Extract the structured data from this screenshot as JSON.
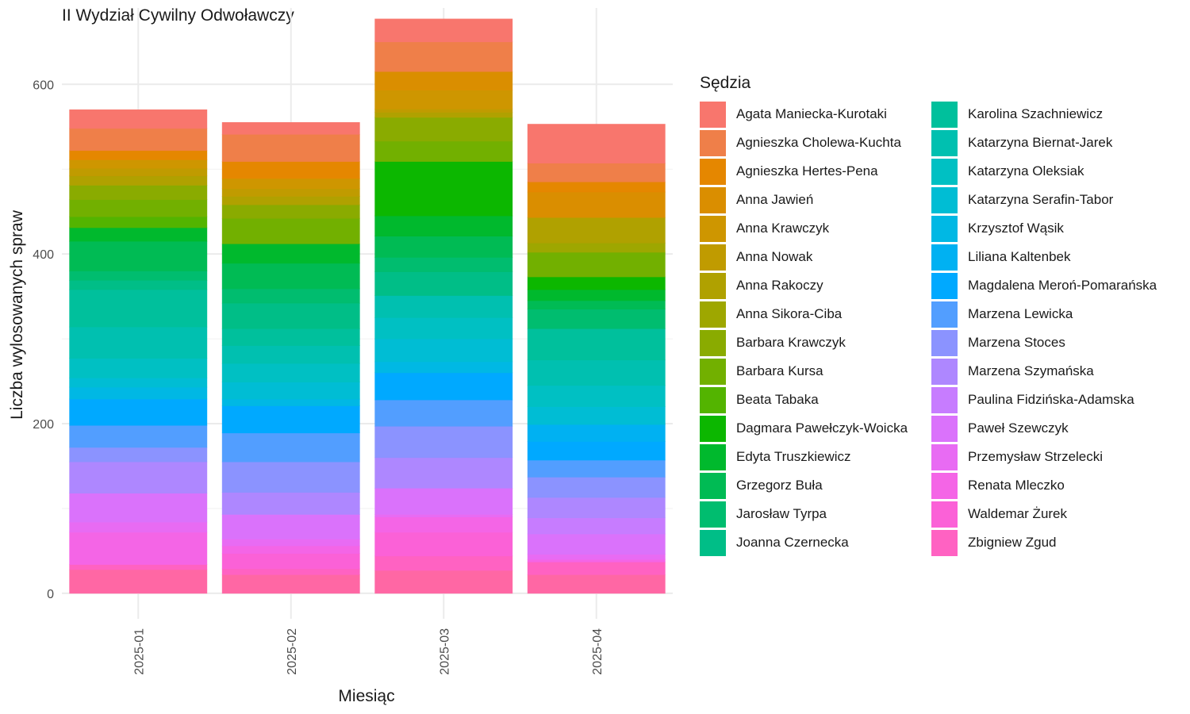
{
  "chart_data": {
    "type": "bar",
    "stacked": true,
    "title": "II Wydział Cywilny Odwoławczy",
    "xlabel": "Miesiąc",
    "ylabel": "Liczba wylosowanych spraw",
    "legend_title": "Sędzia",
    "legend_position": "right",
    "grid": true,
    "ylim": [
      -30,
      690
    ],
    "yticks": [
      0,
      200,
      400,
      600
    ],
    "categories": [
      "2025-01",
      "2025-02",
      "2025-03",
      "2025-04"
    ],
    "series": [
      {
        "name": "Agata Maniecka-Kurotaki",
        "color": "#F8766D",
        "values": [
          22,
          14,
          27,
          46
        ]
      },
      {
        "name": "Agnieszka Cholewa-Kuchta",
        "color": "#EF7F49",
        "values": [
          26,
          32,
          35,
          22
        ]
      },
      {
        "name": "Agnieszka Hertes-Pena",
        "color": "#E58700",
        "values": [
          11,
          20,
          0,
          12
        ]
      },
      {
        "name": "Anna Jawień",
        "color": "#DA8E00",
        "values": [
          0,
          0,
          22,
          30
        ]
      },
      {
        "name": "Anna Krawczyk",
        "color": "#CE9600",
        "values": [
          10,
          12,
          22,
          0
        ]
      },
      {
        "name": "Anna Nowak",
        "color": "#C09B00",
        "values": [
          9,
          9,
          4,
          0
        ]
      },
      {
        "name": "Anna Rakoczy",
        "color": "#B0A100",
        "values": [
          11,
          10,
          6,
          30
        ]
      },
      {
        "name": "Anna Sikora-Ciba",
        "color": "#9EA700",
        "values": [
          0,
          0,
          0,
          11
        ]
      },
      {
        "name": "Barbara Krawczyk",
        "color": "#8AAB00",
        "values": [
          17,
          16,
          28,
          0
        ]
      },
      {
        "name": "Barbara Kursa",
        "color": "#72B000",
        "values": [
          20,
          30,
          24,
          29
        ]
      },
      {
        "name": "Beata Tabaka",
        "color": "#53B400",
        "values": [
          13,
          0,
          0,
          0
        ]
      },
      {
        "name": "Dagmara Pawełczyk-Woicka",
        "color": "#0CB700",
        "values": [
          0,
          0,
          64,
          15
        ]
      },
      {
        "name": "Edyta Truszkiewicz",
        "color": "#00B92D",
        "values": [
          16,
          23,
          24,
          13
        ]
      },
      {
        "name": "Grzegorz Buła",
        "color": "#00BB54",
        "values": [
          35,
          30,
          25,
          10
        ]
      },
      {
        "name": "Jarosław Tyrpa",
        "color": "#00BD6F",
        "values": [
          11,
          17,
          17,
          23
        ]
      },
      {
        "name": "Joanna Czernecka",
        "color": "#00BE87",
        "values": [
          11,
          30,
          28,
          0
        ]
      },
      {
        "name": "Karolina Szachniewicz",
        "color": "#00C09C",
        "values": [
          44,
          20,
          0,
          37
        ]
      },
      {
        "name": "Katarzyna Biernat-Jarek",
        "color": "#00C0B0",
        "values": [
          37,
          21,
          26,
          30
        ]
      },
      {
        "name": "Katarzyna Oleksiak",
        "color": "#00C0C3",
        "values": [
          23,
          22,
          25,
          25
        ]
      },
      {
        "name": "Katarzyna Serafin-Tabor",
        "color": "#00BDD4",
        "values": [
          11,
          20,
          27,
          21
        ]
      },
      {
        "name": "Krzysztof Wąsik",
        "color": "#00B8E4",
        "values": [
          14,
          8,
          13,
          0
        ]
      },
      {
        "name": "Liliana Kaltenbek",
        "color": "#00B1F2",
        "values": [
          0,
          0,
          0,
          20
        ]
      },
      {
        "name": "Magdalena Meroń-Pomarańska",
        "color": "#00A9FF",
        "values": [
          31,
          32,
          32,
          22
        ]
      },
      {
        "name": "Marzena Lewicka",
        "color": "#529EFF",
        "values": [
          26,
          34,
          31,
          20
        ]
      },
      {
        "name": "Marzena Stoces",
        "color": "#8B93FF",
        "values": [
          17,
          36,
          37,
          24
        ]
      },
      {
        "name": "Marzena Szymańska",
        "color": "#AE87FF",
        "values": [
          37,
          26,
          36,
          24
        ]
      },
      {
        "name": "Paulina Fidzińska-Adamska",
        "color": "#C77CFF",
        "values": [
          0,
          0,
          0,
          19
        ]
      },
      {
        "name": "Paweł Szewczyk",
        "color": "#DA72FB",
        "values": [
          34,
          29,
          31,
          24
        ]
      },
      {
        "name": "Przemysław Strzelecki",
        "color": "#E86BF3",
        "values": [
          12,
          8,
          3,
          6
        ]
      },
      {
        "name": "Renata Mleczko",
        "color": "#F465E6",
        "values": [
          38,
          9,
          18,
          3
        ]
      },
      {
        "name": "Waldemar Żurek",
        "color": "#FB61D7",
        "values": [
          0,
          18,
          28,
          0
        ]
      },
      {
        "name": "Zbigniew Zgud",
        "color": "#FF62C2",
        "values": [
          6,
          7,
          17,
          15
        ]
      }
    ],
    "base_series": {
      "name": "",
      "color": "#FF67A4",
      "values": [
        28,
        22,
        27,
        22
      ]
    }
  }
}
